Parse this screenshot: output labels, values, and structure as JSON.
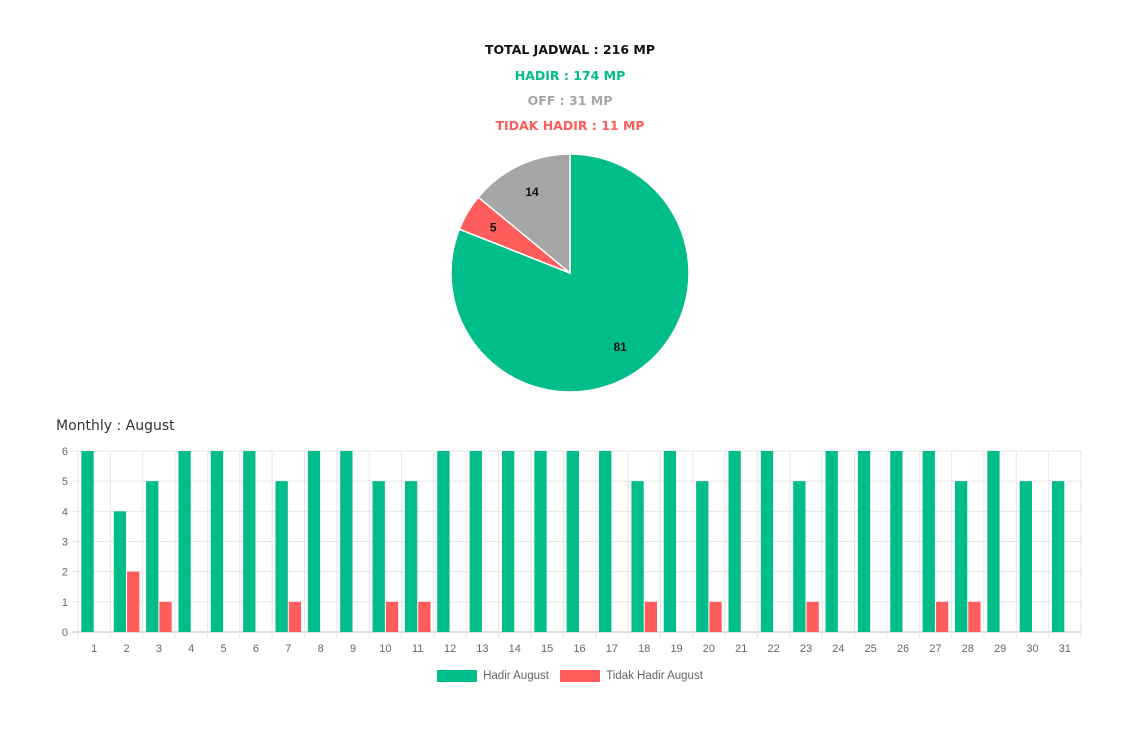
{
  "summary": {
    "total": "TOTAL JADWAL : 216 MP",
    "hadir": "HADIR : 174 MP",
    "off": "OFF : 31 MP",
    "tidak_hadir": "TIDAK HADIR : 11 MP"
  },
  "monthly_title": "Monthly : August",
  "colors": {
    "hadir": "#00bd8a",
    "off": "#a6a6a6",
    "tidak_hadir": "#ff5c5c",
    "total": "#111111"
  },
  "chart_data": [
    {
      "type": "pie",
      "slices": [
        {
          "label": "Hadir",
          "value": 81,
          "color": "#00bd8a"
        },
        {
          "label": "Tidak Hadir",
          "value": 5,
          "color": "#ff5c5c"
        },
        {
          "label": "Off",
          "value": 14,
          "color": "#a6a6a6"
        }
      ]
    },
    {
      "type": "bar",
      "categories": [
        "1",
        "2",
        "3",
        "4",
        "5",
        "6",
        "7",
        "8",
        "9",
        "10",
        "11",
        "12",
        "13",
        "14",
        "15",
        "16",
        "17",
        "18",
        "19",
        "20",
        "21",
        "22",
        "23",
        "24",
        "25",
        "26",
        "27",
        "28",
        "29",
        "30",
        "31"
      ],
      "series": [
        {
          "name": "Hadir August",
          "color": "#00bd8a",
          "values": [
            6,
            4,
            5,
            6,
            6,
            6,
            5,
            6,
            6,
            5,
            5,
            6,
            6,
            6,
            6,
            6,
            6,
            5,
            6,
            5,
            6,
            6,
            5,
            6,
            6,
            6,
            6,
            5,
            6,
            5,
            5
          ]
        },
        {
          "name": "Tidak Hadir August",
          "color": "#ff5c5c",
          "values": [
            0,
            2,
            1,
            0,
            0,
            0,
            1,
            0,
            0,
            1,
            1,
            0,
            0,
            0,
            0,
            0,
            0,
            1,
            0,
            1,
            0,
            0,
            1,
            0,
            0,
            0,
            1,
            1,
            0,
            0,
            0
          ]
        }
      ],
      "yticks": [
        "0",
        "1",
        "2",
        "3",
        "4",
        "5",
        "6"
      ],
      "ylim": [
        0,
        6
      ],
      "grid": true,
      "legend": "bottom"
    }
  ]
}
